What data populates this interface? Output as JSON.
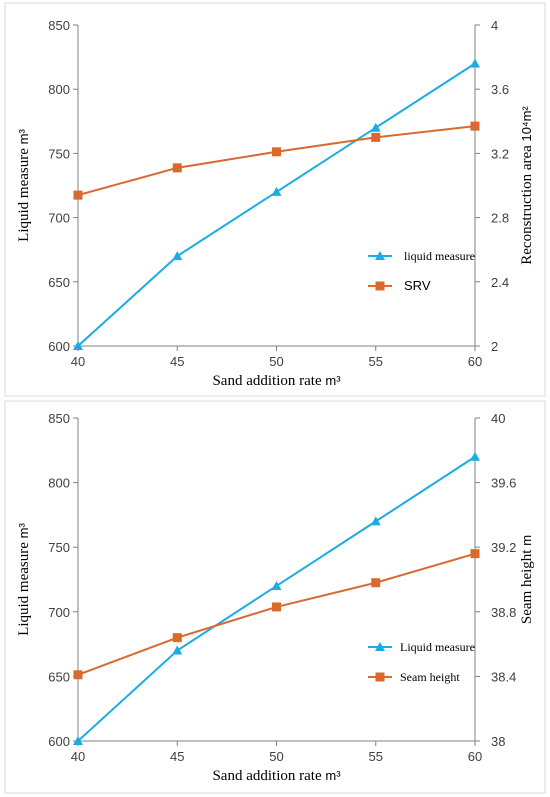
{
  "chart_data": [
    {
      "type": "line",
      "x": [
        40,
        45,
        50,
        55,
        60
      ],
      "xlabel": "Sand addition rate",
      "xlabel_unit": "m³",
      "xlim": [
        40,
        60
      ],
      "x_ticks": [
        "40",
        "45",
        "50",
        "55",
        "60"
      ],
      "ylabel_left": "Liquid measure",
      "ylabel_left_unit": "m³",
      "ylim_left": [
        600,
        850
      ],
      "y_left_ticks": [
        "600",
        "650",
        "700",
        "750",
        "800",
        "850"
      ],
      "ylabel_right": "Reconstruction area",
      "ylabel_right_unit": "10⁴m²",
      "ylim_right": [
        2,
        4
      ],
      "y_right_ticks": [
        "2",
        "2.4",
        "2.8",
        "3.2",
        "3.6",
        "4"
      ],
      "grid": false,
      "legend_position": "right",
      "series": [
        {
          "name": "liquid measure",
          "axis": "left",
          "color": "#1AACE3",
          "marker": "triangle",
          "values": [
            600,
            670,
            720,
            770,
            820
          ]
        },
        {
          "name": "SRV",
          "axis": "right",
          "color": "#D86A2E",
          "marker": "square",
          "values": [
            2.94,
            3.11,
            3.21,
            3.3,
            3.37
          ]
        }
      ]
    },
    {
      "type": "line",
      "x": [
        40,
        45,
        50,
        55,
        60
      ],
      "xlabel": "Sand addition rate",
      "xlabel_unit": "m³",
      "xlim": [
        40,
        60
      ],
      "x_ticks": [
        "40",
        "45",
        "50",
        "55",
        "60"
      ],
      "ylabel_left": "Liquid measure",
      "ylabel_left_unit": "m³",
      "ylim_left": [
        600,
        850
      ],
      "y_left_ticks": [
        "600",
        "650",
        "700",
        "750",
        "800",
        "850"
      ],
      "ylabel_right": "Seam height",
      "ylabel_right_unit": "m",
      "ylim_right": [
        38,
        40
      ],
      "y_right_ticks": [
        "38",
        "38.4",
        "38.8",
        "39.2",
        "39.6",
        "40"
      ],
      "grid": false,
      "legend_position": "right",
      "series": [
        {
          "name": "Liquid measure",
          "axis": "left",
          "color": "#1AACE3",
          "marker": "triangle",
          "values": [
            600,
            670,
            720,
            770,
            820
          ]
        },
        {
          "name": "Seam height",
          "axis": "right",
          "color": "#D86A2E",
          "marker": "square",
          "values": [
            38.41,
            38.64,
            38.83,
            38.98,
            39.16
          ]
        }
      ]
    }
  ],
  "colors": {
    "axis": "#808080",
    "text": "#404040",
    "label": "#000000"
  }
}
